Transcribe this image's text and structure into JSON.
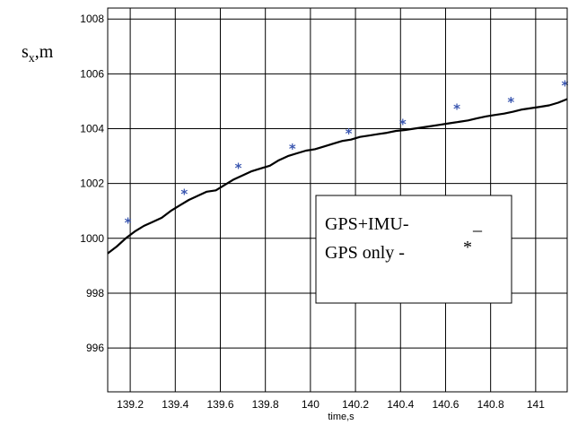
{
  "chart_data": {
    "type": "line",
    "xlabel": "time,s",
    "ylabel_main": "s",
    "ylabel_sub": "x",
    "ylabel_suffix": ",m",
    "xlim": [
      139.1,
      141.14
    ],
    "ylim": [
      994.4,
      1008.4
    ],
    "x_ticks": [
      139.2,
      139.4,
      139.6,
      139.8,
      140,
      140.2,
      140.4,
      140.6,
      140.8,
      141
    ],
    "x_tick_labels": [
      "139.2",
      "139.4",
      "139.6",
      "139.8",
      "140",
      "140.2",
      "140.4",
      "140.6",
      "140.8",
      "141"
    ],
    "y_ticks": [
      996,
      998,
      1000,
      1002,
      1004,
      1006,
      1008
    ],
    "y_tick_labels": [
      "996",
      "998",
      "1000",
      "1002",
      "1004",
      "1006",
      "1008"
    ],
    "grid": true,
    "legend_position": "center-right",
    "colors": {
      "line": "#000000",
      "marker": "#3b57b0",
      "grid": "#000000"
    },
    "series": [
      {
        "name": "GPS+IMU-",
        "legend_symbol": "_",
        "style": "line",
        "x": [
          139.1,
          139.14,
          139.18,
          139.22,
          139.26,
          139.3,
          139.34,
          139.38,
          139.42,
          139.46,
          139.5,
          139.54,
          139.58,
          139.62,
          139.66,
          139.7,
          139.74,
          139.78,
          139.82,
          139.86,
          139.9,
          139.94,
          139.98,
          140.02,
          140.06,
          140.1,
          140.14,
          140.18,
          140.22,
          140.26,
          140.3,
          140.34,
          140.38,
          140.42,
          140.46,
          140.5,
          140.54,
          140.58,
          140.62,
          140.66,
          140.7,
          140.74,
          140.78,
          140.82,
          140.86,
          140.9,
          140.94,
          140.98,
          141.02,
          141.06,
          141.1,
          141.14
        ],
        "y": [
          999.45,
          999.7,
          1000.0,
          1000.25,
          1000.45,
          1000.6,
          1000.75,
          1001.0,
          1001.2,
          1001.4,
          1001.55,
          1001.7,
          1001.75,
          1001.95,
          1002.15,
          1002.3,
          1002.45,
          1002.55,
          1002.65,
          1002.85,
          1003.0,
          1003.1,
          1003.2,
          1003.25,
          1003.35,
          1003.45,
          1003.55,
          1003.6,
          1003.7,
          1003.75,
          1003.8,
          1003.85,
          1003.92,
          1003.95,
          1004.0,
          1004.05,
          1004.1,
          1004.15,
          1004.2,
          1004.25,
          1004.3,
          1004.38,
          1004.45,
          1004.5,
          1004.55,
          1004.62,
          1004.7,
          1004.75,
          1004.8,
          1004.85,
          1004.95,
          1005.08
        ]
      },
      {
        "name": "GPS only  -",
        "legend_symbol": "*",
        "style": "marker",
        "x": [
          139.19,
          139.44,
          139.68,
          139.92,
          140.17,
          140.41,
          140.65,
          140.89,
          141.13
        ],
        "y": [
          1000.6,
          1001.65,
          1002.6,
          1003.3,
          1003.85,
          1004.2,
          1004.75,
          1005.0,
          1005.6
        ]
      }
    ]
  }
}
